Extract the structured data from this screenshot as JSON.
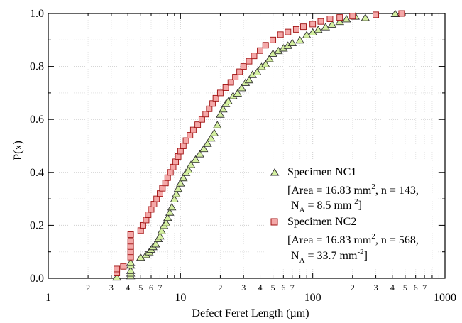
{
  "chart_data": {
    "type": "scatter",
    "xscale": "log",
    "xlim": [
      1,
      1000
    ],
    "ylim": [
      0,
      1
    ],
    "xlabel": "Defect Feret Length (µm)",
    "ylabel": "P(x)",
    "grid": true,
    "legend_position": "bottom-right",
    "x_major_ticks": [
      1,
      10,
      100,
      1000
    ],
    "x_major_tick_labels": [
      "1",
      "10",
      "100",
      "1000"
    ],
    "x_minor_tick_labels": [
      "2",
      "3",
      "4",
      "5",
      "6",
      "7"
    ],
    "y_ticks": [
      0,
      0.2,
      0.4,
      0.6,
      0.8,
      1
    ],
    "y_tick_labels": [
      "0.0",
      "0.2",
      "0.4",
      "0.6",
      "0.8",
      "1.0"
    ],
    "series": [
      {
        "name": "Specimen NC1",
        "info_line1": "[Area = 16.83 mm",
        "info_sup1": "2",
        "info_tail1": ", n = 143,",
        "info_line2a": "N",
        "info_sub2": "A",
        "info_line2b": " = 8.5 mm",
        "info_sup2": "-2",
        "info_tail2": "]",
        "marker": "triangle",
        "fill": "#d4f0a0",
        "stroke": "#333333",
        "points": [
          [
            3.3,
            0.005
          ],
          [
            4.2,
            0.01
          ],
          [
            4.2,
            0.02
          ],
          [
            4.2,
            0.03
          ],
          [
            4.2,
            0.05
          ],
          [
            4.2,
            0.06
          ],
          [
            5.0,
            0.08
          ],
          [
            5.5,
            0.09
          ],
          [
            5.8,
            0.1
          ],
          [
            6.0,
            0.11
          ],
          [
            6.2,
            0.12
          ],
          [
            6.5,
            0.13
          ],
          [
            6.8,
            0.15
          ],
          [
            7.0,
            0.16
          ],
          [
            7.2,
            0.18
          ],
          [
            7.5,
            0.2
          ],
          [
            7.8,
            0.21
          ],
          [
            8.0,
            0.23
          ],
          [
            8.3,
            0.25
          ],
          [
            8.6,
            0.27
          ],
          [
            9.0,
            0.3
          ],
          [
            9.3,
            0.32
          ],
          [
            9.6,
            0.34
          ],
          [
            10.0,
            0.36
          ],
          [
            10.5,
            0.38
          ],
          [
            11.0,
            0.4
          ],
          [
            11.5,
            0.41
          ],
          [
            12.0,
            0.43
          ],
          [
            13.0,
            0.45
          ],
          [
            14.0,
            0.47
          ],
          [
            15.0,
            0.49
          ],
          [
            16.0,
            0.51
          ],
          [
            17.0,
            0.53
          ],
          [
            18.0,
            0.55
          ],
          [
            19.0,
            0.58
          ],
          [
            20.0,
            0.62
          ],
          [
            21.0,
            0.64
          ],
          [
            22.0,
            0.66
          ],
          [
            23.0,
            0.67
          ],
          [
            25.0,
            0.69
          ],
          [
            27.0,
            0.7
          ],
          [
            29.0,
            0.72
          ],
          [
            31.0,
            0.74
          ],
          [
            33.0,
            0.75
          ],
          [
            35.0,
            0.77
          ],
          [
            38.0,
            0.78
          ],
          [
            41.0,
            0.8
          ],
          [
            44.0,
            0.81
          ],
          [
            47.0,
            0.83
          ],
          [
            50.0,
            0.85
          ],
          [
            55.0,
            0.86
          ],
          [
            60.0,
            0.87
          ],
          [
            65.0,
            0.88
          ],
          [
            70.0,
            0.89
          ],
          [
            80.0,
            0.9
          ],
          [
            90.0,
            0.92
          ],
          [
            100.0,
            0.93
          ],
          [
            110.0,
            0.94
          ],
          [
            125.0,
            0.95
          ],
          [
            140.0,
            0.96
          ],
          [
            160.0,
            0.97
          ],
          [
            180.0,
            0.98
          ],
          [
            210.0,
            0.99
          ],
          [
            250.0,
            0.985
          ],
          [
            420.0,
            1.0
          ]
        ]
      },
      {
        "name": "Specimen NC2",
        "info_line1": "[Area = 16.83 mm",
        "info_sup1": "2",
        "info_tail1": ", n = 568,",
        "info_line2a": "N",
        "info_sub2": "A",
        "info_line2b": " = 33.7 mm",
        "info_sup2": "-2",
        "info_tail2": "]",
        "marker": "square",
        "fill": "#f4a8a8",
        "stroke": "#a01010",
        "points": [
          [
            3.3,
            0.02
          ],
          [
            3.3,
            0.035
          ],
          [
            3.7,
            0.045
          ],
          [
            4.2,
            0.08
          ],
          [
            4.2,
            0.1
          ],
          [
            4.2,
            0.12
          ],
          [
            4.2,
            0.14
          ],
          [
            4.2,
            0.165
          ],
          [
            5.0,
            0.18
          ],
          [
            5.2,
            0.2
          ],
          [
            5.5,
            0.22
          ],
          [
            5.7,
            0.24
          ],
          [
            6.0,
            0.26
          ],
          [
            6.3,
            0.28
          ],
          [
            6.6,
            0.3
          ],
          [
            7.0,
            0.32
          ],
          [
            7.3,
            0.34
          ],
          [
            7.7,
            0.36
          ],
          [
            8.0,
            0.38
          ],
          [
            8.4,
            0.4
          ],
          [
            8.8,
            0.42
          ],
          [
            9.2,
            0.44
          ],
          [
            9.6,
            0.46
          ],
          [
            10.0,
            0.48
          ],
          [
            10.5,
            0.5
          ],
          [
            11.0,
            0.52
          ],
          [
            11.8,
            0.54
          ],
          [
            12.5,
            0.56
          ],
          [
            13.5,
            0.58
          ],
          [
            14.5,
            0.6
          ],
          [
            15.5,
            0.62
          ],
          [
            16.5,
            0.64
          ],
          [
            17.5,
            0.66
          ],
          [
            18.5,
            0.68
          ],
          [
            20.0,
            0.7
          ],
          [
            22.0,
            0.72
          ],
          [
            24.0,
            0.74
          ],
          [
            26.0,
            0.76
          ],
          [
            28.0,
            0.78
          ],
          [
            30.0,
            0.8
          ],
          [
            33.0,
            0.82
          ],
          [
            36.0,
            0.84
          ],
          [
            40.0,
            0.86
          ],
          [
            44.0,
            0.88
          ],
          [
            50.0,
            0.9
          ],
          [
            57.0,
            0.92
          ],
          [
            65.0,
            0.93
          ],
          [
            75.0,
            0.94
          ],
          [
            85.0,
            0.95
          ],
          [
            100.0,
            0.96
          ],
          [
            115.0,
            0.97
          ],
          [
            135.0,
            0.98
          ],
          [
            160.0,
            0.985
          ],
          [
            200.0,
            0.99
          ],
          [
            300.0,
            0.995
          ],
          [
            470.0,
            1.0
          ]
        ]
      }
    ]
  }
}
